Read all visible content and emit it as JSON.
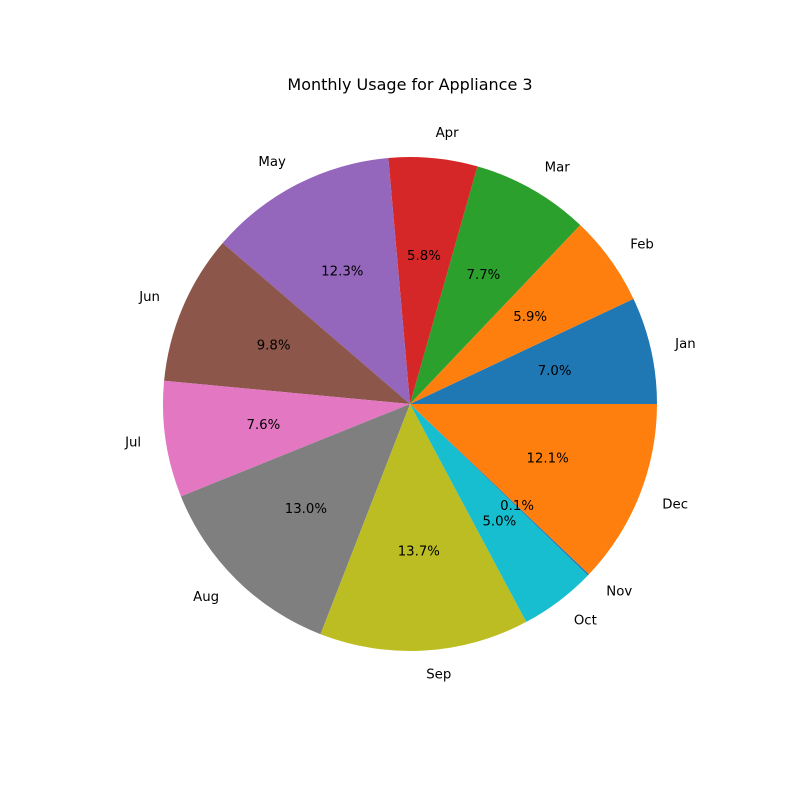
{
  "chart_data": {
    "type": "pie",
    "title": "Monthly Usage for Appliance 3",
    "categories": [
      "Jan",
      "Feb",
      "Mar",
      "Apr",
      "May",
      "Jun",
      "Jul",
      "Aug",
      "Sep",
      "Oct",
      "Nov",
      "Dec"
    ],
    "values": [
      7.0,
      5.9,
      7.7,
      5.8,
      12.3,
      9.8,
      7.6,
      13.0,
      13.7,
      5.0,
      0.1,
      12.1
    ],
    "percent_labels": [
      "7.0%",
      "5.9%",
      "7.7%",
      "5.8%",
      "12.3%",
      "9.8%",
      "7.6%",
      "13.0%",
      "13.7%",
      "5.0%",
      "0.1%",
      "12.1%"
    ],
    "colors": [
      "#1f77b4",
      "#ff7f0e",
      "#2ca02c",
      "#d62728",
      "#9467bd",
      "#8c564b",
      "#e377c2",
      "#7f7f7f",
      "#bcbd22",
      "#17becf",
      "#1f77b4",
      "#ff7f0e"
    ],
    "start_angle": 0,
    "direction": "counterclockwise"
  }
}
